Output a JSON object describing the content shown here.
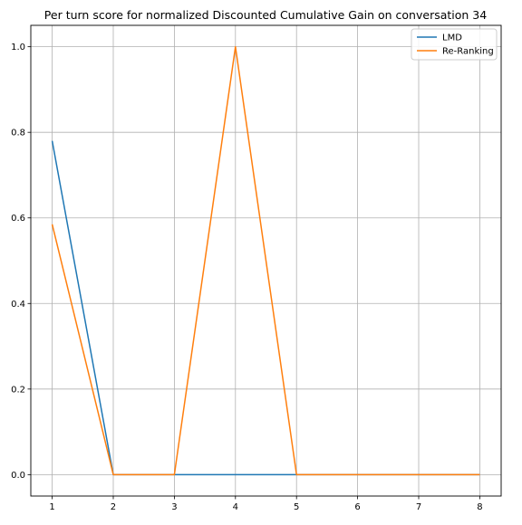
{
  "chart_data": {
    "type": "line",
    "title": "Per turn score for normalized Discounted Cumulative Gain on conversation 34",
    "xlabel": "",
    "ylabel": "",
    "x": [
      1,
      2,
      3,
      4,
      5,
      6,
      7,
      8
    ],
    "xticks": [
      1,
      2,
      3,
      4,
      5,
      6,
      7,
      8
    ],
    "yticks": [
      0.0,
      0.2,
      0.4,
      0.6,
      0.8,
      1.0
    ],
    "ytick_labels": [
      "0.0",
      "0.2",
      "0.4",
      "0.6",
      "0.8",
      "1.0"
    ],
    "xlim": [
      0.65,
      8.35
    ],
    "ylim": [
      -0.05,
      1.05
    ],
    "grid": true,
    "legend_position": "top-right",
    "series": [
      {
        "name": "LMD",
        "color": "#1f77b4",
        "values": [
          0.78,
          0.0,
          0.0,
          0.0,
          0.0,
          0.0,
          0.0,
          0.0
        ]
      },
      {
        "name": "Re-Ranking",
        "color": "#ff7f0e",
        "values": [
          0.585,
          0.0,
          0.0,
          1.0,
          0.0,
          0.0,
          0.0,
          0.0
        ]
      }
    ]
  }
}
